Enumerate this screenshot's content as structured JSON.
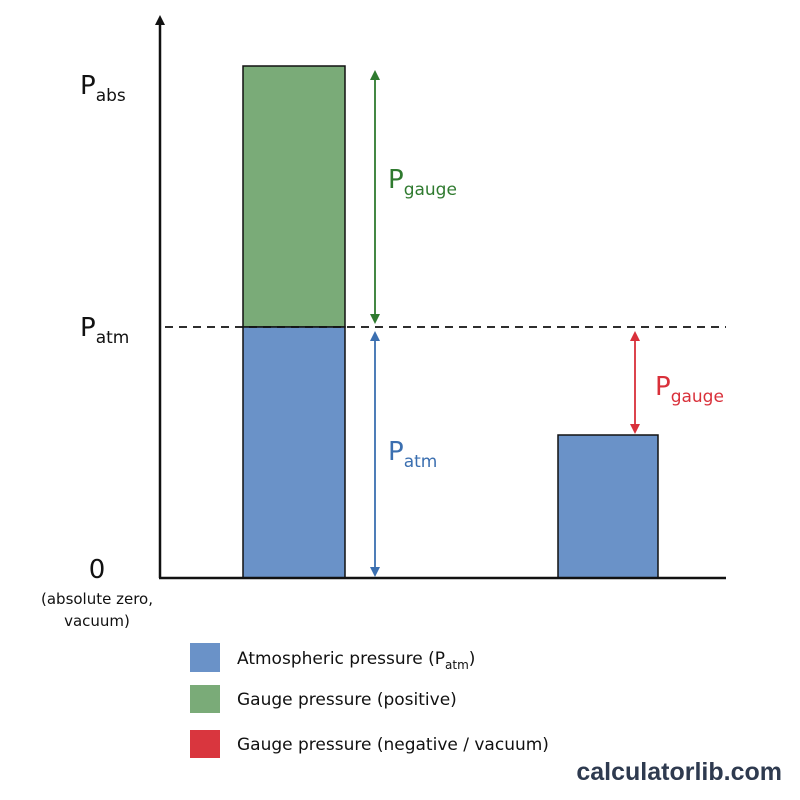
{
  "axis": {
    "labels": [
      {
        "main": "P",
        "sub": "abs"
      },
      {
        "main": "P",
        "sub": "atm"
      },
      {
        "main": "0"
      }
    ],
    "zero_note": [
      "(absolute zero,",
      "vacuum)"
    ]
  },
  "annotations": [
    {
      "main": "P",
      "sub": "gauge"
    },
    {
      "main": "P",
      "sub": "atm"
    },
    {
      "main": "P",
      "sub": "gauge"
    }
  ],
  "legend": [
    {
      "text": "Atmospheric pressure (P",
      "sub": "atm",
      "after": ")"
    },
    {
      "text": "Gauge pressure (positive)"
    },
    {
      "text": "Gauge pressure (negative / vacuum)"
    }
  ],
  "watermark": "calculatorlib.com"
}
